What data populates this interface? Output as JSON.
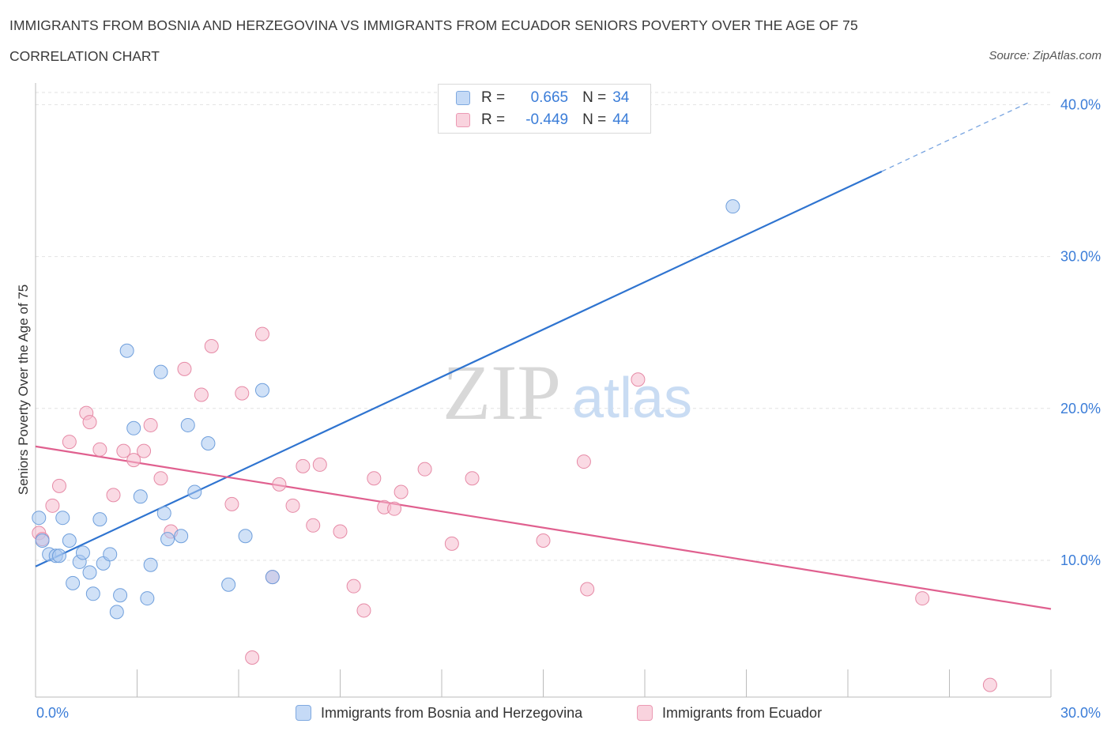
{
  "header": {
    "title": "IMMIGRANTS FROM BOSNIA AND HERZEGOVINA VS IMMIGRANTS FROM ECUADOR SENIORS POVERTY OVER THE AGE OF 75",
    "subtitle": "CORRELATION CHART",
    "source": "Source: ZipAtlas.com"
  },
  "watermark": {
    "zip": "ZIP",
    "atlas": "atlas"
  },
  "legend": {
    "rows": [
      {
        "r_label": "R =",
        "r_value": "0.665",
        "n_label": "N =",
        "n_value": "34",
        "color": "#a9c8f0"
      },
      {
        "r_label": "R =",
        "r_value": "-0.449",
        "n_label": "N =",
        "n_value": "44",
        "color": "#f6bccd"
      }
    ]
  },
  "colors": {
    "blue_fill": "#a9c8f0",
    "blue_stroke": "#6f9fdc",
    "blue_line": "#2f74d0",
    "pink_fill": "#f6bccd",
    "pink_stroke": "#e68aa6",
    "pink_line": "#e0608f",
    "tick_label": "#3b7dd8",
    "grid": "#e2e2e2"
  },
  "chart_data": {
    "type": "scatter",
    "title": "IMMIGRANTS FROM BOSNIA AND HERZEGOVINA VS IMMIGRANTS FROM ECUADOR SENIORS POVERTY OVER THE AGE OF 75",
    "xlabel": "",
    "ylabel": "Seniors Poverty Over the Age of 75",
    "xlim": [
      0,
      30
    ],
    "ylim": [
      1,
      40.8
    ],
    "x_tick_labels": [
      "0.0%",
      "30.0%"
    ],
    "y_ticks": [
      10,
      20,
      30,
      40
    ],
    "y_tick_labels": [
      "10.0%",
      "20.0%",
      "30.0%",
      "40.0%"
    ],
    "grid": true,
    "legend_position": "bottom",
    "series": [
      {
        "name": "Immigrants from Bosnia and Herzegovina",
        "color": "#a9c8f0",
        "trend": {
          "x": [
            0,
            25
          ],
          "y": [
            9.6,
            35.6
          ],
          "dashed_to": [
            29.4,
            40.2
          ]
        },
        "points": [
          [
            0.1,
            12.8
          ],
          [
            0.2,
            11.3
          ],
          [
            0.4,
            10.4
          ],
          [
            0.6,
            10.3
          ],
          [
            0.7,
            10.3
          ],
          [
            0.8,
            12.8
          ],
          [
            1.0,
            11.3
          ],
          [
            1.1,
            8.5
          ],
          [
            1.3,
            9.9
          ],
          [
            1.4,
            10.5
          ],
          [
            1.6,
            9.2
          ],
          [
            1.7,
            7.8
          ],
          [
            1.9,
            12.7
          ],
          [
            2.0,
            9.8
          ],
          [
            2.2,
            10.4
          ],
          [
            2.4,
            6.6
          ],
          [
            2.5,
            7.7
          ],
          [
            2.7,
            23.8
          ],
          [
            2.9,
            18.7
          ],
          [
            3.1,
            14.2
          ],
          [
            3.3,
            7.5
          ],
          [
            3.4,
            9.7
          ],
          [
            3.7,
            22.4
          ],
          [
            3.8,
            13.1
          ],
          [
            3.9,
            11.4
          ],
          [
            4.3,
            11.6
          ],
          [
            4.5,
            18.9
          ],
          [
            4.7,
            14.5
          ],
          [
            5.1,
            17.7
          ],
          [
            5.7,
            8.4
          ],
          [
            6.2,
            11.6
          ],
          [
            6.7,
            21.2
          ],
          [
            7.0,
            8.9
          ],
          [
            20.6,
            33.3
          ]
        ]
      },
      {
        "name": "Immigrants from Ecuador",
        "color": "#f6bccd",
        "trend": {
          "x": [
            0,
            30
          ],
          "y": [
            17.5,
            6.8
          ]
        },
        "points": [
          [
            0.1,
            11.8
          ],
          [
            0.2,
            11.4
          ],
          [
            0.5,
            13.6
          ],
          [
            0.7,
            14.9
          ],
          [
            1.0,
            17.8
          ],
          [
            1.5,
            19.7
          ],
          [
            1.6,
            19.1
          ],
          [
            1.9,
            17.3
          ],
          [
            2.3,
            14.3
          ],
          [
            2.6,
            17.2
          ],
          [
            2.9,
            16.6
          ],
          [
            3.2,
            17.2
          ],
          [
            3.4,
            18.9
          ],
          [
            3.7,
            15.4
          ],
          [
            4.0,
            11.9
          ],
          [
            4.4,
            22.6
          ],
          [
            4.9,
            20.9
          ],
          [
            5.2,
            24.1
          ],
          [
            5.8,
            13.7
          ],
          [
            6.1,
            21.0
          ],
          [
            6.7,
            24.9
          ],
          [
            7.0,
            8.9
          ],
          [
            7.2,
            15.0
          ],
          [
            7.6,
            13.6
          ],
          [
            7.9,
            16.2
          ],
          [
            8.2,
            12.3
          ],
          [
            8.4,
            16.3
          ],
          [
            9.0,
            11.9
          ],
          [
            9.4,
            8.3
          ],
          [
            9.7,
            6.7
          ],
          [
            10.0,
            15.4
          ],
          [
            10.3,
            13.5
          ],
          [
            10.6,
            13.4
          ],
          [
            10.8,
            14.5
          ],
          [
            11.5,
            16.0
          ],
          [
            12.3,
            11.1
          ],
          [
            12.9,
            15.4
          ],
          [
            6.4,
            3.6
          ],
          [
            15.0,
            11.3
          ],
          [
            16.2,
            16.5
          ],
          [
            16.3,
            8.1
          ],
          [
            17.8,
            21.9
          ],
          [
            26.2,
            7.5
          ],
          [
            28.2,
            1.8
          ]
        ]
      }
    ]
  }
}
